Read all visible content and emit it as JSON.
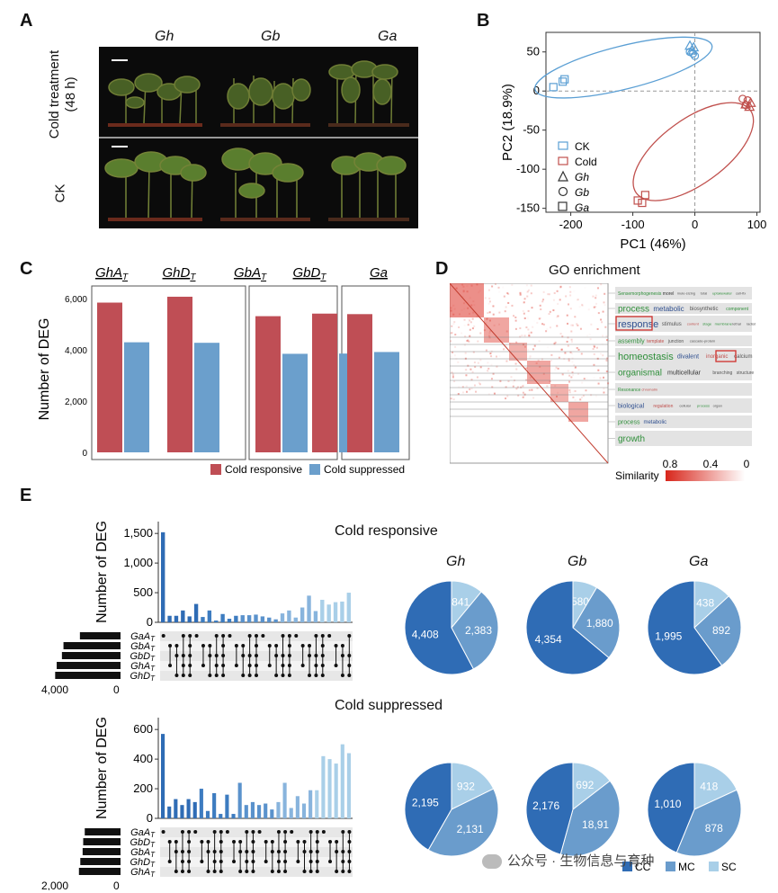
{
  "panels": {
    "a": "A",
    "b": "B",
    "c": "C",
    "d": "D",
    "e": "E"
  },
  "panel_a": {
    "species": [
      "Gh",
      "Gb",
      "Ga"
    ],
    "row_labels": {
      "cold_line1": "Cold treatment",
      "cold_line2": "(48 h)",
      "ck": "CK"
    }
  },
  "chart_data": [
    {
      "id": "pca",
      "type": "scatter",
      "xlabel": "PC1 (46%)",
      "ylabel": "PC2 (18.9%)",
      "xlim": [
        -240,
        105
      ],
      "ylim": [
        -155,
        75
      ],
      "xticks": [
        "-200",
        "-100",
        "0",
        "100"
      ],
      "xtick_values": [
        -200,
        -100,
        0,
        100
      ],
      "yticks": [
        "50",
        "0",
        "-50",
        "-100",
        "-150"
      ],
      "ytick_values": [
        50,
        0,
        -50,
        -100,
        -150
      ],
      "colors": {
        "CK": "#5b9fd4",
        "Cold": "#c0504d"
      },
      "legend": {
        "ck": "CK",
        "cold": "Cold",
        "gh": "Gh",
        "gb": "Gb",
        "ga": "Ga"
      },
      "series": [
        {
          "name": "CK",
          "species": "Gh",
          "marker": "triangle",
          "points": [
            [
              -8,
              58
            ],
            [
              -2,
              56
            ],
            [
              -5,
              52
            ]
          ]
        },
        {
          "name": "CK",
          "species": "Gb",
          "marker": "circle",
          "points": [
            [
              -3,
              48
            ],
            [
              -8,
              50
            ],
            [
              0,
              45
            ]
          ]
        },
        {
          "name": "CK",
          "species": "Ga",
          "marker": "square",
          "points": [
            [
              -228,
              5
            ],
            [
              -213,
              12
            ],
            [
              -210,
              15
            ]
          ]
        },
        {
          "name": "Cold",
          "species": "Gh",
          "marker": "triangle",
          "points": [
            [
              82,
              -17
            ],
            [
              88,
              -20
            ],
            [
              90,
              -15
            ]
          ]
        },
        {
          "name": "Cold",
          "species": "Gb",
          "marker": "circle",
          "points": [
            [
              77,
              -10
            ],
            [
              82,
              -18
            ],
            [
              85,
              -12
            ]
          ]
        },
        {
          "name": "Cold",
          "species": "Ga",
          "marker": "square",
          "points": [
            [
              -92,
              -140
            ],
            [
              -85,
              -143
            ],
            [
              -80,
              -133
            ]
          ]
        }
      ]
    },
    {
      "id": "deg_bars",
      "type": "bar",
      "ylabel": "Number of DEG",
      "ylim": [
        0,
        6500
      ],
      "yticks": [
        "6,000",
        "4,000",
        "2,000",
        "0"
      ],
      "ytick_values": [
        6000,
        4000,
        2000,
        0
      ],
      "groups": [
        "GhA",
        "GhD",
        "GbA",
        "GbD",
        "Ga"
      ],
      "group_subscripts": [
        "T",
        "T",
        "T",
        "T",
        ""
      ],
      "series": [
        {
          "name": "Cold responsive",
          "color": "#bf4e55",
          "values": [
            5850,
            6080,
            5320,
            5420,
            5400
          ]
        },
        {
          "name": "Cold suppressed",
          "color": "#6b9fcc",
          "values": [
            4300,
            4280,
            3850,
            3860,
            3920
          ]
        }
      ],
      "legend": [
        "Cold responsive",
        "Cold suppressed"
      ]
    },
    {
      "id": "upset_responsive",
      "type": "bar",
      "title": "Cold responsive",
      "ylabel": "Number of DEG",
      "ylim": [
        0,
        1700
      ],
      "yticks": [
        "1,500",
        "1,000",
        "500",
        "0"
      ],
      "ytick_values": [
        1500,
        1000,
        500,
        0
      ],
      "set_labels": [
        "GaA",
        "GbA",
        "GbD",
        "GhA",
        "GhD"
      ],
      "set_axis": [
        "4,000",
        "0"
      ],
      "set_sizes": [
        2100,
        2950,
        3030,
        3300,
        3380
      ],
      "values": [
        1520,
        110,
        110,
        200,
        100,
        310,
        90,
        200,
        30,
        140,
        60,
        110,
        120,
        120,
        130,
        100,
        80,
        50,
        150,
        200,
        80,
        250,
        450,
        190,
        380,
        300,
        340,
        350,
        500
      ]
    },
    {
      "id": "upset_suppressed",
      "type": "bar",
      "title": "Cold suppressed",
      "ylabel": "Number of DEG",
      "ylim": [
        0,
        680
      ],
      "yticks": [
        "600",
        "400",
        "200",
        "0"
      ],
      "ytick_values": [
        600,
        400,
        200,
        0
      ],
      "set_labels": [
        "GaA",
        "GbD",
        "GbA",
        "GhD",
        "GhA"
      ],
      "set_axis": [
        "2,000",
        "0"
      ],
      "set_sizes": [
        1850,
        1930,
        1960,
        2080,
        2150
      ],
      "values": [
        570,
        80,
        130,
        90,
        130,
        110,
        200,
        50,
        170,
        30,
        160,
        30,
        240,
        90,
        110,
        90,
        100,
        60,
        110,
        240,
        70,
        150,
        100,
        190,
        190,
        420,
        400,
        370,
        500,
        440
      ]
    },
    {
      "id": "pies",
      "type": "pie",
      "species": [
        "Gh",
        "Gb",
        "Ga"
      ],
      "categories": [
        "CC",
        "MC",
        "SC"
      ],
      "colors": [
        "#2f6cb5",
        "#6a9ccc",
        "#a9cfe8"
      ],
      "rows": [
        {
          "label": "Cold responsive",
          "values": [
            [
              4408,
              2383,
              841
            ],
            [
              4354,
              1880,
              580
            ],
            [
              1995,
              892,
              438
            ]
          ],
          "labels": [
            [
              "4,408",
              "2,383",
              "841"
            ],
            [
              "4,354",
              "1,880",
              "580"
            ],
            [
              "1,995",
              "892",
              "438"
            ]
          ]
        },
        {
          "label": "Cold suppressed",
          "values": [
            [
              2195,
              2131,
              932
            ],
            [
              2176,
              1891,
              692
            ],
            [
              1010,
              878,
              418
            ]
          ],
          "labels": [
            [
              "2,195",
              "2,131",
              "932"
            ],
            [
              "2,176",
              "18,91",
              "692"
            ],
            [
              "1,010",
              "878",
              "418"
            ]
          ]
        }
      ]
    }
  ],
  "go": {
    "title": "GO enrichment",
    "similarity_label": "Similarity",
    "similarity_ticks": [
      "0.8",
      "0.4",
      "0"
    ],
    "rows": [
      {
        "words": [
          [
            "Sensemorphogenesis",
            "#2f8f3a",
            5
          ],
          [
            "morel",
            "#333",
            5
          ],
          [
            "mule-sizing",
            "#555",
            4
          ],
          [
            "total",
            "#555",
            4
          ],
          [
            "uptakewater",
            "#2f8f3a",
            4
          ],
          [
            "cell-fix",
            "#555",
            4
          ]
        ]
      },
      {
        "words": [
          [
            "process",
            "#2f8f3a",
            10
          ],
          [
            "metabolic",
            "#2f4f8f",
            8
          ],
          [
            "biosynthetic",
            "#555",
            6
          ],
          [
            "component",
            "#2f8f3a",
            5
          ]
        ]
      },
      {
        "words": [
          [
            "response",
            "#2f4f8f",
            11
          ],
          [
            "stimulus",
            "#555",
            6
          ],
          [
            "content",
            "#c0504d",
            4
          ],
          [
            "stage",
            "#2f8f3a",
            4
          ],
          [
            "membrane",
            "#2f8f3a",
            4
          ],
          [
            "lethal",
            "#555",
            4
          ],
          [
            "radiation",
            "#555",
            4
          ],
          [
            "nitrate",
            "#555",
            4
          ]
        ]
      },
      {
        "words": [
          [
            "assembly",
            "#2f8f3a",
            7
          ],
          [
            "template",
            "#c0504d",
            5
          ],
          [
            "junction",
            "#555",
            5
          ],
          [
            "cascade-protein",
            "#555",
            4
          ]
        ]
      },
      {
        "words": [
          [
            "homeostasis",
            "#2f8f3a",
            11
          ],
          [
            "divalent",
            "#2f4f8f",
            7
          ],
          [
            "inorganic",
            "#c0504d",
            6
          ],
          [
            "calcium",
            "#555",
            6
          ],
          [
            "ion",
            "#555",
            5
          ]
        ]
      },
      {
        "words": [
          [
            "organismal",
            "#2f8f3a",
            10
          ],
          [
            "multicellular",
            "#333",
            7
          ],
          [
            "branching",
            "#555",
            5
          ],
          [
            "structure",
            "#555",
            5
          ]
        ]
      },
      {
        "words": [
          [
            "Resonance",
            "#2f8f3a",
            5
          ],
          [
            "chromatin",
            "#c0504d",
            4
          ]
        ]
      },
      {
        "words": [
          [
            "biological",
            "#2f4f8f",
            7
          ],
          [
            "regulation",
            "#c0504d",
            5
          ],
          [
            "cellular",
            "#555",
            4
          ],
          [
            "process",
            "#2f8f3a",
            4
          ],
          [
            "organ",
            "#555",
            4
          ]
        ]
      },
      {
        "words": [
          [
            "process",
            "#2f8f3a",
            7
          ],
          [
            "metabolic",
            "#2f4f8f",
            6
          ]
        ]
      },
      {
        "words": [
          [
            "growth",
            "#2f8f3a",
            10
          ]
        ]
      }
    ]
  },
  "watermark": "公众号 · 生物信息与育种"
}
